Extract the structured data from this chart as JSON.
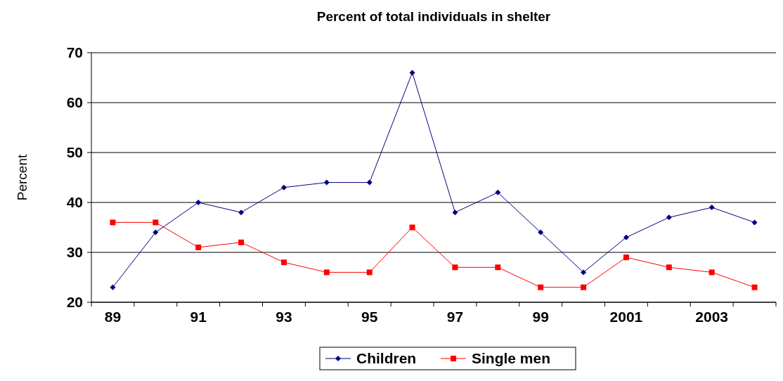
{
  "chart_data": {
    "type": "line",
    "title": "Percent of total individuals in shelter",
    "ylabel": "Percent",
    "categories": [
      "89",
      null,
      "91",
      null,
      "93",
      null,
      "95",
      null,
      "97",
      null,
      "99",
      null,
      "2001",
      null,
      "2003",
      null
    ],
    "series": [
      {
        "name": "Children",
        "color": "#000080",
        "marker": "diamond",
        "values": [
          23,
          34,
          40,
          38,
          43,
          44,
          44,
          66,
          38,
          42,
          34,
          26,
          33,
          37,
          39,
          36
        ]
      },
      {
        "name": "Single men",
        "color": "#ff0000",
        "marker": "square",
        "values": [
          36,
          36,
          31,
          32,
          28,
          26,
          26,
          35,
          27,
          27,
          23,
          23,
          29,
          27,
          26,
          23
        ]
      }
    ],
    "ylim": [
      20,
      70
    ],
    "yticks": [
      20,
      30,
      40,
      50,
      60,
      70
    ],
    "grid": "y",
    "legend": "bottom",
    "line_style": "solid"
  }
}
